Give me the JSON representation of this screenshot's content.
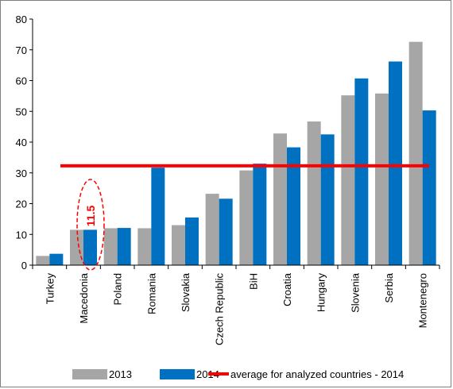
{
  "chart_data": {
    "type": "bar",
    "categories": [
      "Turkey",
      "Macedonia",
      "Poland",
      "Romania",
      "Slovakia",
      "Czech Republic",
      "BiH",
      "Croatia",
      "Hungary",
      "Slovenia",
      "Serbia",
      "Montenegro"
    ],
    "series": [
      {
        "name": "2013",
        "color": "#a6a6a6",
        "values": [
          3.0,
          11.5,
          12.0,
          12.0,
          13.0,
          23.2,
          30.8,
          42.8,
          46.7,
          55.2,
          55.8,
          72.6
        ]
      },
      {
        "name": "2014",
        "color": "#0070c0",
        "values": [
          3.7,
          11.5,
          12.1,
          31.7,
          15.5,
          21.6,
          33.0,
          38.3,
          42.5,
          60.7,
          66.2,
          50.3
        ]
      }
    ],
    "average_line": {
      "name": "average for analyzed countries - 2014",
      "value": 32.3,
      "color": "#ff0000"
    },
    "annotation": {
      "label": "11.5",
      "category": "Macedonia",
      "color": "#ff0000"
    },
    "ylim": [
      0,
      80
    ],
    "yticks": [
      0,
      10,
      20,
      30,
      40,
      50,
      60,
      70,
      80
    ],
    "grid": false,
    "legend_position": "bottom"
  }
}
